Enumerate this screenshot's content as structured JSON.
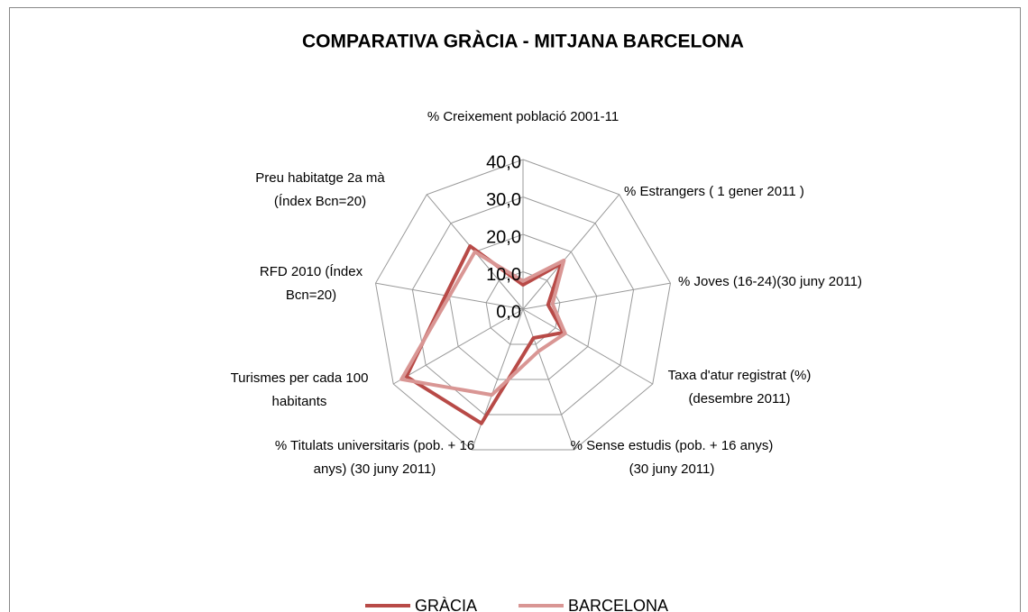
{
  "chart_data": {
    "type": "radar",
    "title": "COMPARATIVA GRÀCIA - MITJANA BARCELONA",
    "categories": [
      "% Creixement població 2001-11",
      "% Estrangers ( 1 gener 2011 )",
      "% Joves (16-24)(30 juny 2011)",
      "Taxa d'atur registrat (%) (desembre 2011)",
      "% Sense estudis (pob. + 16 anys) (30 juny 2011)",
      "% Titulats universitaris (pob. + 16 anys) (30 juny 2011)",
      "Turismes per cada 100 habitants",
      "RFD 2010 (Índex Bcn=20)",
      "Preu habitatge 2a mà (Índex Bcn=20)"
    ],
    "series": [
      {
        "name": "GRÀCIA",
        "color": "#b84a47",
        "values": [
          6.5,
          16,
          6.8,
          12.5,
          8.2,
          32.5,
          36,
          21,
          22
        ]
      },
      {
        "name": "BARCELONA",
        "color": "#d99694",
        "values": [
          7.5,
          17,
          8,
          13,
          12,
          24.4,
          37.5,
          20,
          20
        ]
      }
    ],
    "ylim": [
      0,
      40
    ],
    "yticks": [
      {
        "value": 0,
        "label": "0,0"
      },
      {
        "value": 10,
        "label": "10,0"
      },
      {
        "value": 20,
        "label": "20,0"
      },
      {
        "value": 30,
        "label": "30,0"
      },
      {
        "value": 40,
        "label": "40,0"
      }
    ],
    "grid": true,
    "legend": "bottom"
  }
}
